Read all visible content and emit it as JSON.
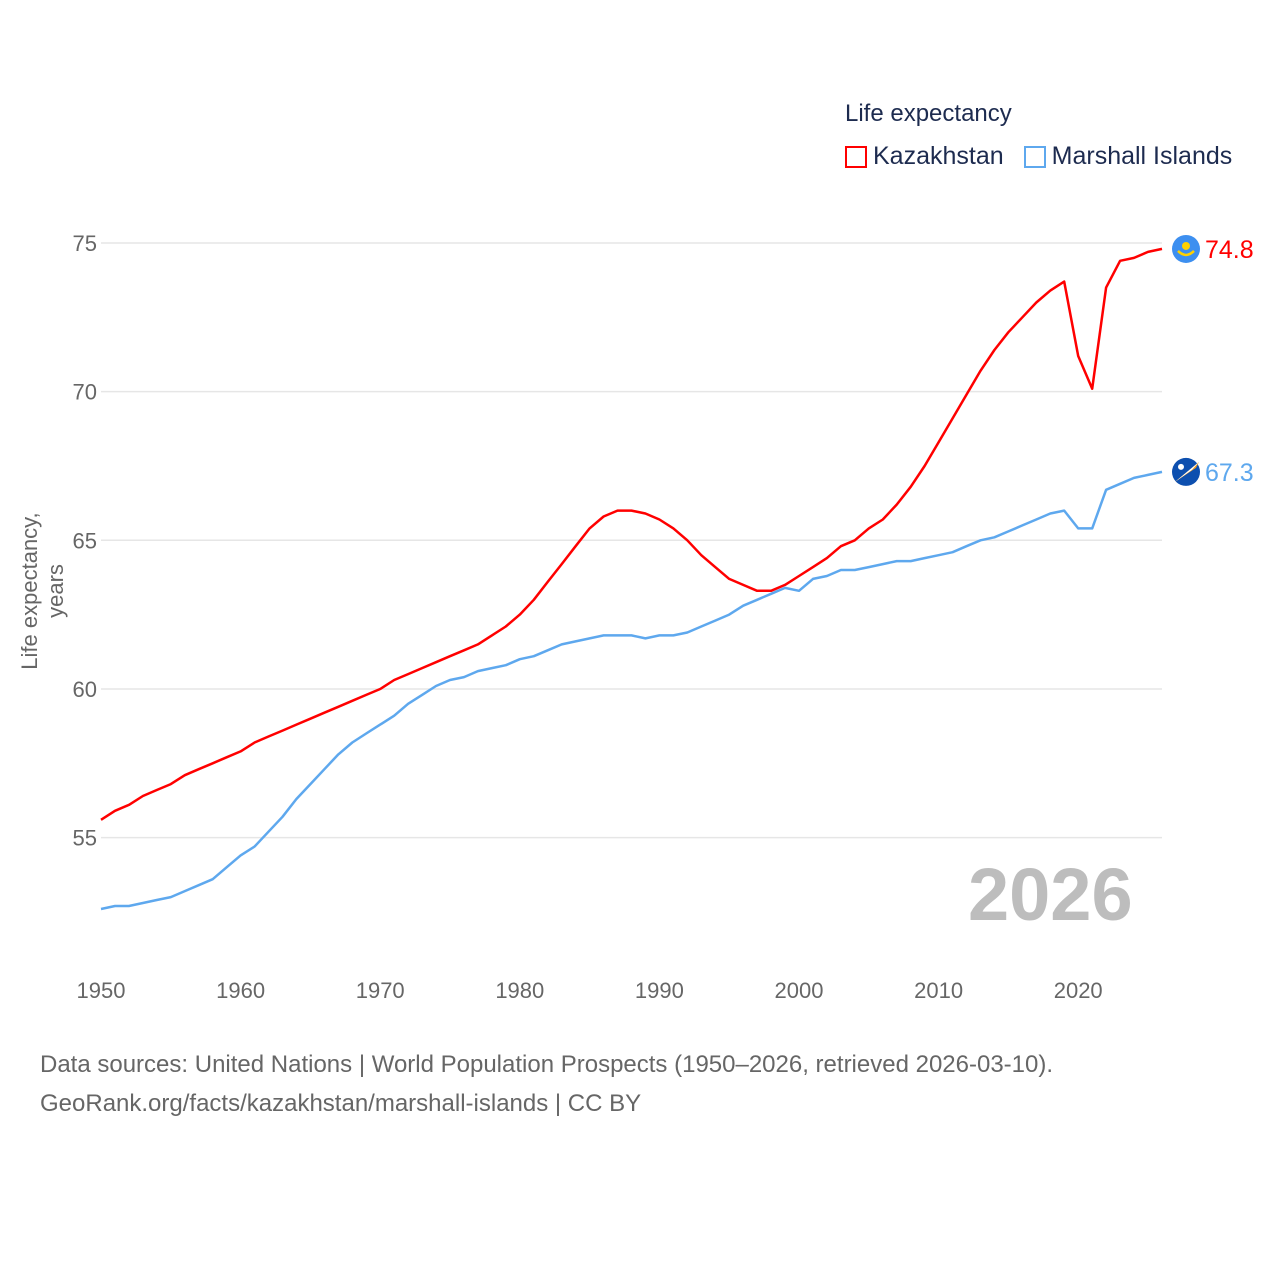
{
  "chart_data": {
    "type": "line",
    "title": "",
    "legend_title": "Life expectancy",
    "legend_placement": "top-right",
    "ylabel": "Life expectancy, years",
    "xlabel": "",
    "xlim": [
      1950,
      2026
    ],
    "ylim": [
      52,
      76
    ],
    "x_ticks": [
      1950,
      1960,
      1970,
      1980,
      1990,
      2000,
      2010,
      2020
    ],
    "y_ticks": [
      55,
      60,
      65,
      70,
      75
    ],
    "grid": true,
    "current_year": "2026",
    "x_start": 1950,
    "series": [
      {
        "name": "Kazakhstan",
        "color": "#ff0000",
        "end_label": "74.8",
        "flag": "kazakhstan-flag-icon",
        "values": [
          55.6,
          55.9,
          56.1,
          56.4,
          56.6,
          56.8,
          57.1,
          57.3,
          57.5,
          57.7,
          57.9,
          58.2,
          58.4,
          58.6,
          58.8,
          59.0,
          59.2,
          59.4,
          59.6,
          59.8,
          60.0,
          60.3,
          60.5,
          60.7,
          60.9,
          61.1,
          61.3,
          61.5,
          61.8,
          62.1,
          62.5,
          63.0,
          63.6,
          64.2,
          64.8,
          65.4,
          65.8,
          66.0,
          66.0,
          65.9,
          65.7,
          65.4,
          65.0,
          64.5,
          64.1,
          63.7,
          63.5,
          63.3,
          63.3,
          63.5,
          63.8,
          64.1,
          64.4,
          64.8,
          65.0,
          65.4,
          65.7,
          66.2,
          66.8,
          67.5,
          68.3,
          69.1,
          69.9,
          70.7,
          71.4,
          72.0,
          72.5,
          73.0,
          73.4,
          73.7,
          71.2,
          70.1,
          73.5,
          74.4,
          74.5,
          74.7,
          74.8
        ]
      },
      {
        "name": "Marshall Islands",
        "color": "#5ea8ee",
        "end_label": "67.3",
        "flag": "marshall-islands-flag-icon",
        "values": [
          52.6,
          52.7,
          52.7,
          52.8,
          52.9,
          53.0,
          53.2,
          53.4,
          53.6,
          54.0,
          54.4,
          54.7,
          55.2,
          55.7,
          56.3,
          56.8,
          57.3,
          57.8,
          58.2,
          58.5,
          58.8,
          59.1,
          59.5,
          59.8,
          60.1,
          60.3,
          60.4,
          60.6,
          60.7,
          60.8,
          61.0,
          61.1,
          61.3,
          61.5,
          61.6,
          61.7,
          61.8,
          61.8,
          61.8,
          61.7,
          61.8,
          61.8,
          61.9,
          62.1,
          62.3,
          62.5,
          62.8,
          63.0,
          63.2,
          63.4,
          63.3,
          63.7,
          63.8,
          64.0,
          64.0,
          64.1,
          64.2,
          64.3,
          64.3,
          64.4,
          64.5,
          64.6,
          64.8,
          65.0,
          65.1,
          65.3,
          65.5,
          65.7,
          65.9,
          66.0,
          65.4,
          65.4,
          66.7,
          66.9,
          67.1,
          67.2,
          67.3
        ]
      }
    ]
  },
  "source": {
    "line1": "Data sources: United Nations | World Population Prospects (1950–2026, retrieved 2026-03-10).",
    "line2": "GeoRank.org/facts/kazakhstan/marshall-islands | CC BY"
  }
}
